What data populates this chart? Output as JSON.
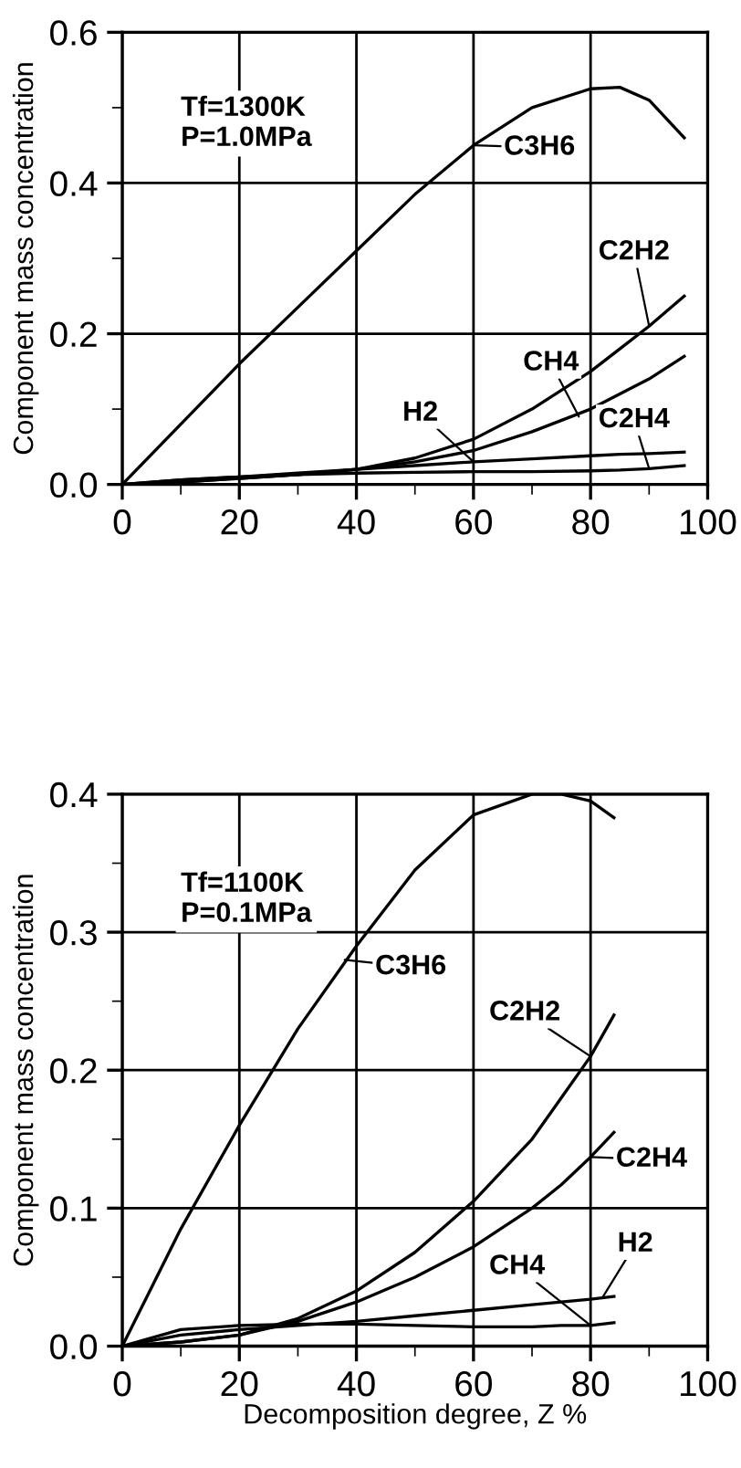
{
  "chart_data": [
    {
      "type": "line",
      "ylabel": "Component mass concentration",
      "xlim": [
        0,
        100
      ],
      "ylim": [
        0,
        0.6
      ],
      "xticks": [
        0,
        20,
        40,
        60,
        80,
        100
      ],
      "yticks": [
        {
          "value": 0,
          "label": "0.0"
        },
        {
          "value": 0.2,
          "label": "0.2"
        },
        {
          "value": 0.4,
          "label": "0.4"
        },
        {
          "value": 0.6,
          "label": "0.6"
        }
      ],
      "grid": true,
      "legend": false,
      "marker": "none",
      "line_style": "solid",
      "x": [
        0,
        10,
        20,
        30,
        40,
        50,
        60,
        70,
        80,
        85,
        90,
        96
      ],
      "series": [
        {
          "color": "#000000",
          "values": [
            0,
            0.08,
            0.16,
            0.235,
            0.31,
            0.385,
            0.45,
            0.5,
            0.525,
            0.527,
            0.51,
            0.46
          ]
        },
        {
          "color": "#000000",
          "values": [
            0,
            0.003,
            0.008,
            0.013,
            0.02,
            0.035,
            0.06,
            0.1,
            0.15,
            0.18,
            0.21,
            0.25
          ]
        },
        {
          "color": "#000000",
          "values": [
            0,
            0.003,
            0.008,
            0.013,
            0.02,
            0.03,
            0.045,
            0.07,
            0.1,
            0.12,
            0.14,
            0.17
          ]
        },
        {
          "color": "#000000",
          "values": [
            0,
            0.006,
            0.01,
            0.015,
            0.02,
            0.025,
            0.03,
            0.034,
            0.038,
            0.04,
            0.041,
            0.043
          ]
        },
        {
          "color": "#000000",
          "values": [
            0,
            0.006,
            0.01,
            0.013,
            0.015,
            0.016,
            0.017,
            0.017,
            0.018,
            0.019,
            0.021,
            0.025
          ]
        }
      ],
      "annotations": [
        "Tf=1300K\nP=1.0MPa",
        {
          "text": "C3H6",
          "x": 60,
          "y": 0.45
        },
        {
          "text": "C2H2",
          "x": 90,
          "y": 0.21
        },
        {
          "text": "CH4",
          "x": 78,
          "y": 0.09
        },
        {
          "text": "H2",
          "x": 60,
          "y": 0.03
        },
        {
          "text": "C2H4",
          "x": 90,
          "y": 0.021
        }
      ]
    },
    {
      "type": "line",
      "ylabel": "Component mass concentration",
      "xlabel": "Decomposition degree, Z %",
      "xlim": [
        0,
        100
      ],
      "ylim": [
        0,
        0.4
      ],
      "xticks": [
        0,
        20,
        40,
        60,
        80,
        100
      ],
      "yticks": [
        {
          "value": 0,
          "label": "0.0"
        },
        {
          "value": 0.1,
          "label": "0.1"
        },
        {
          "value": 0.2,
          "label": "0.2"
        },
        {
          "value": 0.3,
          "label": "0.3"
        },
        {
          "value": 0.4,
          "label": "0.4"
        }
      ],
      "grid": true,
      "legend": false,
      "marker": "none",
      "line_style": "solid",
      "x": [
        0,
        10,
        20,
        30,
        40,
        50,
        60,
        70,
        75,
        80,
        84
      ],
      "series": [
        {
          "color": "#000000",
          "values": [
            0,
            0.085,
            0.16,
            0.23,
            0.29,
            0.345,
            0.385,
            0.4,
            0.4,
            0.395,
            0.383
          ]
        },
        {
          "color": "#000000",
          "values": [
            0,
            0.003,
            0.008,
            0.02,
            0.04,
            0.068,
            0.105,
            0.15,
            0.18,
            0.21,
            0.24
          ]
        },
        {
          "color": "#000000",
          "values": [
            0,
            0.003,
            0.008,
            0.018,
            0.032,
            0.05,
            0.072,
            0.1,
            0.117,
            0.137,
            0.155
          ]
        },
        {
          "color": "#000000",
          "values": [
            0,
            0.008,
            0.012,
            0.015,
            0.018,
            0.022,
            0.026,
            0.03,
            0.032,
            0.034,
            0.036
          ]
        },
        {
          "color": "#000000",
          "values": [
            0,
            0.012,
            0.015,
            0.016,
            0.016,
            0.015,
            0.014,
            0.014,
            0.015,
            0.015,
            0.017
          ]
        }
      ],
      "annotations": [
        "Tf=1100K\nP=0.1MPa",
        {
          "text": "C3H6",
          "x": 38,
          "y": 0.28
        },
        {
          "text": "C2H2",
          "x": 80,
          "y": 0.21
        },
        {
          "text": "C2H4",
          "x": 80,
          "y": 0.137
        },
        {
          "text": "H2",
          "x": 82,
          "y": 0.035
        },
        {
          "text": "CH4",
          "x": 80,
          "y": 0.015
        }
      ]
    }
  ]
}
